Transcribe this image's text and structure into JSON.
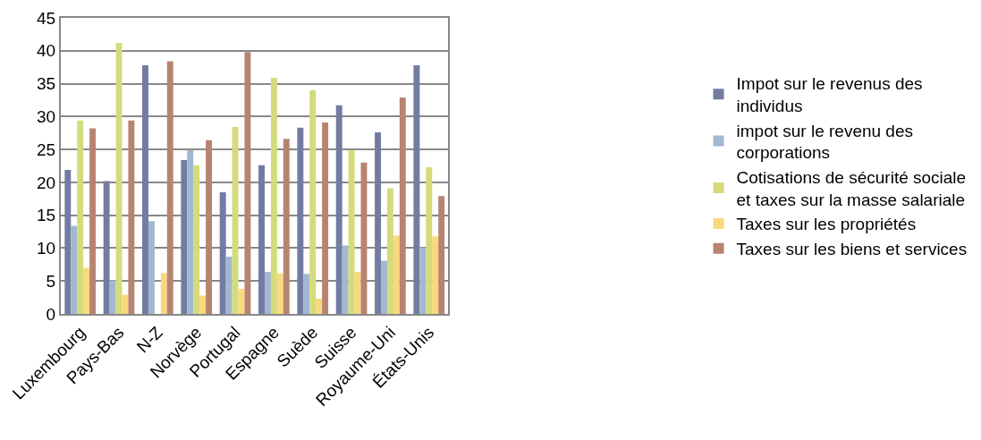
{
  "chart_data": {
    "type": "bar",
    "categories": [
      "Luxembourg",
      "Pays-Bas",
      "N-Z",
      "Norvège",
      "Portugal",
      "Espagne",
      "Suède",
      "Suisse",
      "Royaume-Uni",
      "États-Unis"
    ],
    "series": [
      {
        "name": "Impot sur le revenus des individus",
        "color": "#727ca3",
        "values": [
          21.9,
          20.2,
          37.8,
          23.4,
          18.5,
          22.6,
          28.3,
          31.7,
          27.6,
          37.8
        ]
      },
      {
        "name": "impot sur le revenu des corporations",
        "color": "#a2b8d0",
        "values": [
          13.4,
          5.1,
          14.1,
          24.9,
          8.7,
          6.4,
          6.1,
          10.4,
          8.1,
          10.1
        ]
      },
      {
        "name": "Cotisations de sécurité sociale et taxes sur la masse salariale",
        "color": "#d4db7b",
        "values": [
          29.4,
          41.2,
          0,
          22.6,
          28.4,
          35.9,
          34.0,
          24.9,
          19.1,
          22.3
        ]
      },
      {
        "name": "Taxes sur les propriétés",
        "color": "#f9d97b",
        "values": [
          7.0,
          2.9,
          6.2,
          2.8,
          3.8,
          6.2,
          2.3,
          6.4,
          11.9,
          11.8
        ]
      },
      {
        "name": "Taxes sur les biens et services",
        "color": "#b78471",
        "values": [
          28.2,
          29.4,
          38.4,
          26.4,
          39.8,
          26.6,
          29.1,
          23.0,
          32.9,
          17.9
        ]
      }
    ],
    "ylim": [
      0,
      45
    ],
    "yticks": [
      0,
      5,
      10,
      15,
      20,
      25,
      30,
      35,
      40,
      45
    ],
    "grid": "y",
    "legend": "right"
  }
}
